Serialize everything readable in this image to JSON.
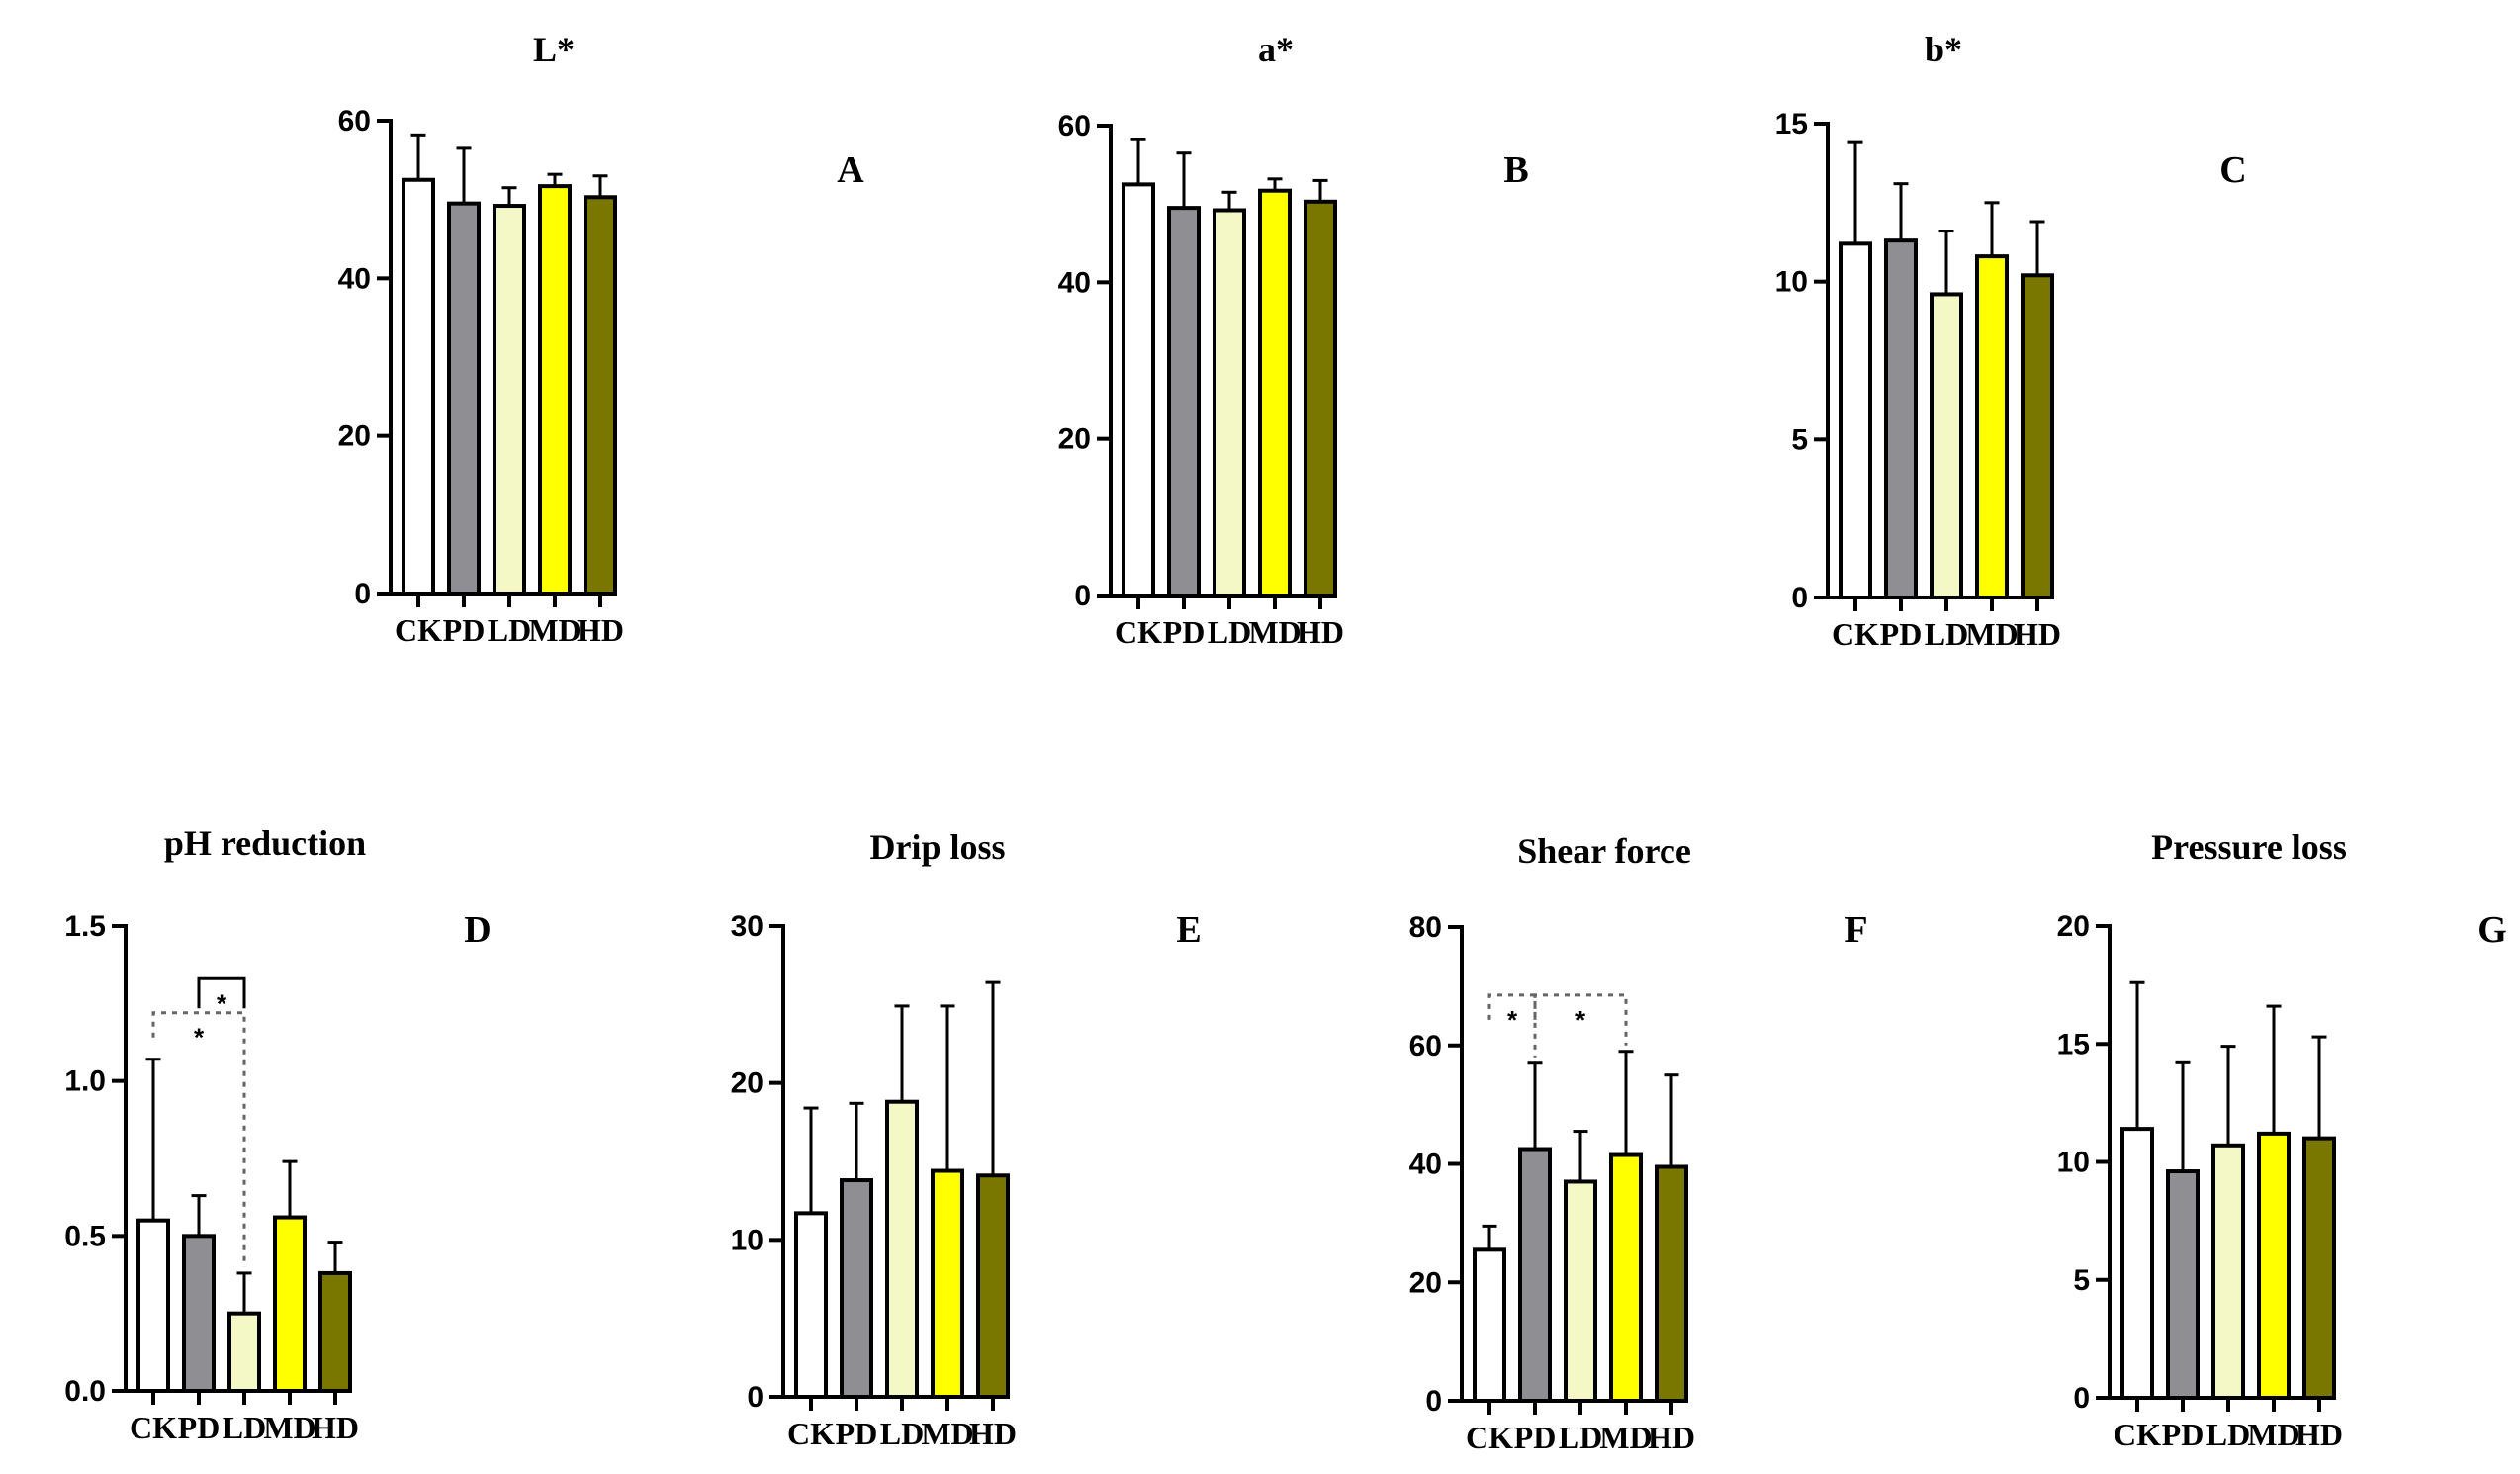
{
  "figure_title": "",
  "chart_data": [
    {
      "type": "bar",
      "panel": "A",
      "title": "L*",
      "categories": [
        "CK",
        "PD",
        "LD",
        "MD",
        "HD"
      ],
      "values": [
        52.5,
        49.5,
        49.2,
        51.7,
        50.3
      ],
      "errors": [
        5.7,
        7.0,
        2.3,
        1.5,
        2.7
      ],
      "ylim": [
        0,
        60
      ],
      "yticks": [
        0,
        20,
        40,
        60
      ],
      "ytick_labels": [
        "0",
        "20",
        "40",
        "60"
      ],
      "colors": [
        "#ffffff",
        "#8e8e93",
        "#f3f8c6",
        "#ffff00",
        "#7a7700"
      ],
      "significance": []
    },
    {
      "type": "bar",
      "panel": "B",
      "title": "a*",
      "categories": [
        "CK",
        "PD",
        "LD",
        "MD",
        "HD"
      ],
      "values": [
        52.5,
        49.5,
        49.2,
        51.7,
        50.3
      ],
      "errors": [
        5.7,
        7.0,
        2.3,
        1.5,
        2.7
      ],
      "ylim": [
        0,
        60
      ],
      "yticks": [
        0,
        20,
        40,
        60
      ],
      "ytick_labels": [
        "0",
        "20",
        "40",
        "60"
      ],
      "colors": [
        "#ffffff",
        "#8e8e93",
        "#f3f8c6",
        "#ffff00",
        "#7a7700"
      ],
      "significance": []
    },
    {
      "type": "bar",
      "panel": "C",
      "title": "b*",
      "categories": [
        "CK",
        "PD",
        "LD",
        "MD",
        "HD"
      ],
      "values": [
        11.2,
        11.3,
        9.6,
        10.8,
        10.2
      ],
      "errors": [
        3.2,
        1.8,
        2.0,
        1.7,
        1.7
      ],
      "ylim": [
        0,
        15
      ],
      "yticks": [
        0,
        5,
        10,
        15
      ],
      "ytick_labels": [
        "0",
        "5",
        "10",
        "15"
      ],
      "colors": [
        "#ffffff",
        "#8e8e93",
        "#f3f8c6",
        "#ffff00",
        "#7a7700"
      ],
      "significance": []
    },
    {
      "type": "bar",
      "panel": "D",
      "title": "pH reduction",
      "categories": [
        "CK",
        "PD",
        "LD",
        "MD",
        "HD"
      ],
      "values": [
        0.55,
        0.5,
        0.25,
        0.56,
        0.38
      ],
      "errors": [
        0.52,
        0.13,
        0.13,
        0.18,
        0.1
      ],
      "ylim": [
        0,
        1.5
      ],
      "yticks": [
        0,
        0.5,
        1.0,
        1.5
      ],
      "ytick_labels": [
        "0.0",
        "0.5",
        "1.0",
        "1.5"
      ],
      "colors": [
        "#ffffff",
        "#8e8e93",
        "#f3f8c6",
        "#ffff00",
        "#7a7700"
      ],
      "significance": [
        {
          "from": 0,
          "to": 2,
          "y": 1.22,
          "label": "*",
          "style": "dotted",
          "label_pos": "below"
        },
        {
          "from": 1,
          "to": 2,
          "y": 1.33,
          "label": "*",
          "style": "solid",
          "label_pos": "below"
        }
      ]
    },
    {
      "type": "bar",
      "panel": "E",
      "title": "Drip loss",
      "categories": [
        "CK",
        "PD",
        "LD",
        "MD",
        "HD"
      ],
      "values": [
        11.7,
        13.8,
        18.8,
        14.4,
        14.1
      ],
      "errors": [
        6.7,
        4.9,
        6.1,
        10.5,
        12.3
      ],
      "ylim": [
        0,
        30
      ],
      "yticks": [
        0,
        10,
        20,
        30
      ],
      "ytick_labels": [
        "0",
        "10",
        "20",
        "30"
      ],
      "colors": [
        "#ffffff",
        "#8e8e93",
        "#f3f8c6",
        "#ffff00",
        "#7a7700"
      ],
      "significance": []
    },
    {
      "type": "bar",
      "panel": "F",
      "title": "Shear force",
      "categories": [
        "CK",
        "PD",
        "LD",
        "MD",
        "HD"
      ],
      "values": [
        25.5,
        42.5,
        37.0,
        41.5,
        39.5
      ],
      "errors": [
        4.0,
        14.5,
        8.5,
        17.5,
        15.5
      ],
      "ylim": [
        0,
        80
      ],
      "yticks": [
        0,
        20,
        40,
        60,
        80
      ],
      "ytick_labels": [
        "0",
        "20",
        "40",
        "60",
        "80"
      ],
      "colors": [
        "#ffffff",
        "#8e8e93",
        "#f3f8c6",
        "#ffff00",
        "#7a7700"
      ],
      "significance": [
        {
          "from": 0,
          "to": 1,
          "y": 68.5,
          "label": "*",
          "style": "dotted",
          "label_pos": "below"
        },
        {
          "from": 1,
          "to": 3,
          "y": 68.5,
          "label": "*",
          "style": "dotted",
          "label_pos": "below"
        }
      ]
    },
    {
      "type": "bar",
      "panel": "G",
      "title": "Pressure loss",
      "categories": [
        "CK",
        "PD",
        "LD",
        "MD",
        "HD"
      ],
      "values": [
        11.4,
        9.6,
        10.7,
        11.2,
        11.0
      ],
      "errors": [
        6.2,
        4.6,
        4.2,
        5.4,
        4.3
      ],
      "ylim": [
        0,
        20
      ],
      "yticks": [
        0,
        5,
        10,
        15,
        20
      ],
      "ytick_labels": [
        "0",
        "5",
        "10",
        "15",
        "20"
      ],
      "colors": [
        "#ffffff",
        "#8e8e93",
        "#f3f8c6",
        "#ffff00",
        "#7a7700"
      ],
      "significance": []
    }
  ]
}
